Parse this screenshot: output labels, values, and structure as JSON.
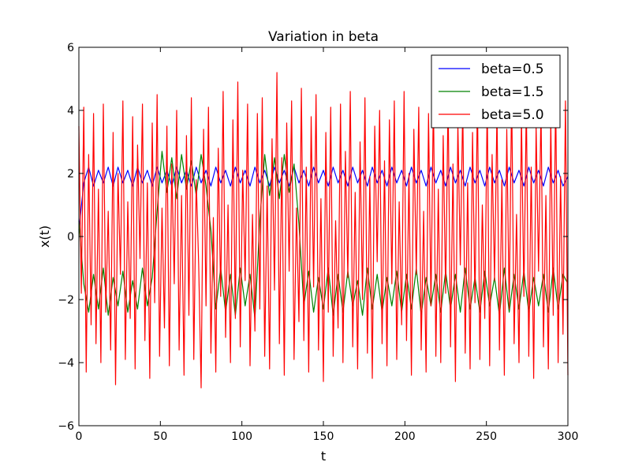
{
  "chart_data": {
    "type": "line",
    "title": "Variation in beta",
    "xlabel": "t",
    "ylabel": "x(t)",
    "xlim": [
      0,
      300
    ],
    "ylim": [
      -6,
      6
    ],
    "xticks": [
      0,
      50,
      100,
      150,
      200,
      250,
      300
    ],
    "yticks": [
      -6,
      -4,
      -2,
      0,
      2,
      4,
      6
    ],
    "xtick_labels": [
      "0",
      "50",
      "100",
      "150",
      "200",
      "250",
      "300"
    ],
    "ytick_labels": [
      "−6",
      "−4",
      "−2",
      "0",
      "2",
      "4",
      "6"
    ],
    "grid": false,
    "legend_position": "top-right",
    "series": [
      {
        "name": "beta=0.5",
        "color": "#0000ff",
        "x": [
          0,
          3,
          6,
          9,
          12,
          15,
          18,
          21,
          24,
          27,
          30,
          33,
          36,
          39,
          42,
          45,
          48,
          51,
          54,
          57,
          60,
          63,
          66,
          69,
          72,
          75,
          78,
          81,
          84,
          87,
          90,
          93,
          96,
          99,
          102,
          105,
          108,
          111,
          114,
          117,
          120,
          123,
          126,
          129,
          132,
          135,
          138,
          141,
          144,
          147,
          150,
          153,
          156,
          159,
          162,
          165,
          168,
          171,
          174,
          177,
          180,
          183,
          186,
          189,
          192,
          195,
          198,
          201,
          204,
          207,
          210,
          213,
          216,
          219,
          222,
          225,
          228,
          231,
          234,
          237,
          240,
          243,
          246,
          249,
          252,
          255,
          258,
          261,
          264,
          267,
          270,
          273,
          276,
          279,
          282,
          285,
          288,
          291,
          294,
          297,
          300
        ],
        "y": [
          0.2,
          1.7,
          2.2,
          1.6,
          2.1,
          1.7,
          2.2,
          1.6,
          2.2,
          1.7,
          2.1,
          1.6,
          2.2,
          1.7,
          2.1,
          1.6,
          2.2,
          1.7,
          2.1,
          1.6,
          2.2,
          1.7,
          2.1,
          1.6,
          2.2,
          1.7,
          2.1,
          1.6,
          2.2,
          1.7,
          2.1,
          1.6,
          2.2,
          1.7,
          2.1,
          1.6,
          2.2,
          1.7,
          2.1,
          1.6,
          2.2,
          1.7,
          2.1,
          1.6,
          2.2,
          1.7,
          2.1,
          1.6,
          2.2,
          1.7,
          2.1,
          1.6,
          2.2,
          1.7,
          2.1,
          1.6,
          2.2,
          1.7,
          2.1,
          1.6,
          2.2,
          1.7,
          2.1,
          1.6,
          2.2,
          1.7,
          2.1,
          1.6,
          2.2,
          1.7,
          2.1,
          1.6,
          2.2,
          1.7,
          2.1,
          1.6,
          2.2,
          1.7,
          2.1,
          1.6,
          2.2,
          1.7,
          2.1,
          1.6,
          2.2,
          1.7,
          2.1,
          1.6,
          2.2,
          1.7,
          2.1,
          1.6,
          2.2,
          1.7,
          2.1,
          1.6,
          2.2,
          1.7,
          2.1,
          1.6,
          1.9
        ]
      },
      {
        "name": "beta=1.5",
        "color": "#008000",
        "x": [
          0,
          3,
          6,
          9,
          12,
          15,
          18,
          21,
          24,
          27,
          30,
          33,
          36,
          39,
          42,
          45,
          48,
          51,
          54,
          57,
          60,
          63,
          66,
          69,
          72,
          75,
          78,
          81,
          84,
          87,
          90,
          93,
          96,
          99,
          102,
          105,
          108,
          111,
          114,
          117,
          120,
          123,
          126,
          129,
          132,
          135,
          138,
          141,
          144,
          147,
          150,
          153,
          156,
          159,
          162,
          165,
          168,
          171,
          174,
          177,
          180,
          183,
          186,
          189,
          192,
          195,
          198,
          201,
          204,
          207,
          210,
          213,
          216,
          219,
          222,
          225,
          228,
          231,
          234,
          237,
          240,
          243,
          246,
          249,
          252,
          255,
          258,
          261,
          264,
          267,
          270,
          273,
          276,
          279,
          282,
          285,
          288,
          291,
          294,
          297,
          300
        ],
        "y": [
          0.5,
          -1.5,
          -2.4,
          -1.2,
          -2.3,
          -1.0,
          -2.5,
          -1.3,
          -2.2,
          -1.1,
          -2.4,
          -1.4,
          -2.3,
          -1.0,
          -2.2,
          -1.3,
          0.8,
          2.7,
          1.4,
          2.5,
          1.2,
          2.6,
          1.5,
          2.4,
          1.3,
          2.6,
          1.6,
          0.2,
          -2.3,
          -1.0,
          -2.4,
          -1.2,
          -2.5,
          -1.0,
          -2.2,
          -1.2,
          -2.6,
          0.5,
          2.6,
          1.3,
          2.5,
          1.2,
          2.6,
          1.4,
          2.3,
          0.4,
          -2.2,
          -1.1,
          -2.4,
          -1.3,
          -2.3,
          -1.0,
          -2.5,
          -1.2,
          -2.4,
          -1.1,
          -2.2,
          -1.4,
          -2.5,
          -1.0,
          -2.3,
          -1.2,
          -2.4,
          -1.3,
          -2.2,
          -1.1,
          -2.4,
          -1.2,
          -2.3,
          -1.0,
          -2.5,
          -1.3,
          -2.2,
          -1.2,
          -2.4,
          -1.1,
          -2.3,
          -1.2,
          -2.4,
          -1.0,
          -2.3,
          -1.3,
          -2.4,
          -1.1,
          -2.2,
          -1.3,
          -2.5,
          -1.0,
          -2.4,
          -1.2,
          -2.3,
          -1.1,
          -2.4,
          -1.3,
          -2.2,
          -1.2,
          -2.4,
          -1.0,
          -2.3,
          -1.2,
          -1.5
        ]
      },
      {
        "name": "beta=5.0",
        "color": "#ff0000",
        "x": [
          0,
          1.5,
          3,
          4.5,
          6,
          7.5,
          9,
          10.5,
          12,
          13.5,
          15,
          16.5,
          18,
          19.5,
          21,
          22.5,
          24,
          25.5,
          27,
          28.5,
          30,
          31.5,
          33,
          34.5,
          36,
          37.5,
          39,
          40.5,
          42,
          43.5,
          45,
          46.5,
          48,
          49.5,
          51,
          52.5,
          54,
          55.5,
          57,
          58.5,
          60,
          61.5,
          63,
          64.5,
          66,
          67.5,
          69,
          70.5,
          72,
          73.5,
          75,
          76.5,
          78,
          79.5,
          81,
          82.5,
          84,
          85.5,
          87,
          88.5,
          90,
          91.5,
          93,
          94.5,
          96,
          97.5,
          99,
          100.5,
          102,
          103.5,
          105,
          106.5,
          108,
          109.5,
          111,
          112.5,
          114,
          115.5,
          117,
          118.5,
          120,
          121.5,
          123,
          124.5,
          126,
          127.5,
          129,
          130.5,
          132,
          133.5,
          135,
          136.5,
          138,
          139.5,
          141,
          142.5,
          144,
          145.5,
          147,
          148.5,
          150,
          151.5,
          153,
          154.5,
          156,
          157.5,
          159,
          160.5,
          162,
          163.5,
          165,
          166.5,
          168,
          169.5,
          171,
          172.5,
          174,
          175.5,
          177,
          178.5,
          180,
          181.5,
          183,
          184.5,
          186,
          187.5,
          189,
          190.5,
          192,
          193.5,
          195,
          196.5,
          198,
          199.5,
          201,
          202.5,
          204,
          205.5,
          207,
          208.5,
          210,
          211.5,
          213,
          214.5,
          216,
          217.5,
          219,
          220.5,
          222,
          223.5,
          225,
          226.5,
          228,
          229.5,
          231,
          232.5,
          234,
          235.5,
          237,
          238.5,
          240,
          241.5,
          243,
          244.5,
          246,
          247.5,
          249,
          250.5,
          252,
          253.5,
          255,
          256.5,
          258,
          259.5,
          261,
          262.5,
          264,
          265.5,
          267,
          268.5,
          270,
          271.5,
          273,
          274.5,
          276,
          277.5,
          279,
          280.5,
          282,
          283.5,
          285,
          286.5,
          288,
          289.5,
          291,
          292.5,
          294,
          295.5,
          297,
          298.5,
          300
        ],
        "y": [
          3.5,
          -1.8,
          4.1,
          -4.3,
          2.6,
          -2.8,
          3.9,
          -3.4,
          1.5,
          -4.0,
          4.2,
          -2.4,
          0.8,
          -3.6,
          3.3,
          -4.7,
          2.0,
          -1.2,
          4.3,
          -3.9,
          1.1,
          -2.6,
          3.8,
          -4.2,
          2.9,
          -0.7,
          4.2,
          -3.3,
          1.7,
          -4.5,
          3.6,
          -2.1,
          4.5,
          -3.8,
          0.9,
          -2.9,
          3.5,
          -4.1,
          2.3,
          -1.5,
          4.0,
          -3.6,
          1.3,
          -4.4,
          3.2,
          -2.5,
          4.4,
          -3.9,
          1.8,
          -0.9,
          -4.8,
          3.4,
          -2.2,
          4.1,
          -3.7,
          0.6,
          -4.3,
          2.8,
          -1.9,
          4.6,
          -3.2,
          1.0,
          -4.0,
          3.7,
          -2.6,
          4.9,
          -3.5,
          2.1,
          -1.4,
          4.2,
          -4.1,
          0.7,
          -3.0,
          3.9,
          -2.3,
          4.4,
          -3.8,
          1.6,
          -4.2,
          3.1,
          -1.7,
          5.2,
          -3.4,
          2.5,
          -4.4,
          3.6,
          -1.1,
          4.3,
          -3.9,
          0.9,
          -2.7,
          4.7,
          -3.3,
          2.2,
          -4.3,
          3.8,
          -1.6,
          4.5,
          -3.6,
          1.2,
          -4.6,
          3.3,
          -2.4,
          4.1,
          -3.8,
          0.5,
          -2.9,
          4.2,
          -4.0,
          2.7,
          -1.3,
          4.6,
          -3.5,
          1.4,
          -4.2,
          3.0,
          -2.0,
          4.4,
          -3.7,
          1.9,
          -4.5,
          3.5,
          -0.8,
          4.0,
          -3.4,
          2.4,
          -4.1,
          3.7,
          -1.5,
          4.3,
          -3.9,
          1.1,
          -2.8,
          4.6,
          -3.3,
          2.0,
          -4.4,
          3.4,
          -1.2,
          4.1,
          -3.6,
          0.8,
          -4.3,
          3.9,
          -2.2,
          4.5,
          -3.8,
          1.5,
          -4.0,
          3.2,
          -1.8,
          4.4,
          -3.5,
          2.3,
          -4.6,
          3.6,
          -0.9,
          4.2,
          -3.7,
          1.7,
          -4.2,
          3.3,
          -2.1,
          4.5,
          -3.9,
          1.0,
          -2.6,
          4.3,
          -4.1,
          2.6,
          -1.4,
          4.0,
          -3.6,
          1.8,
          -4.4,
          3.4,
          -2.3,
          4.6,
          -3.4,
          0.7,
          -4.0,
          3.8,
          -1.9,
          4.3,
          -3.8,
          2.2,
          -4.5,
          3.5,
          -1.1,
          4.1,
          -3.5,
          1.3,
          -4.2,
          3.7,
          -2.5,
          4.5,
          -4.0,
          1.9,
          -3.1,
          4.3,
          -4.4
        ]
      }
    ]
  }
}
